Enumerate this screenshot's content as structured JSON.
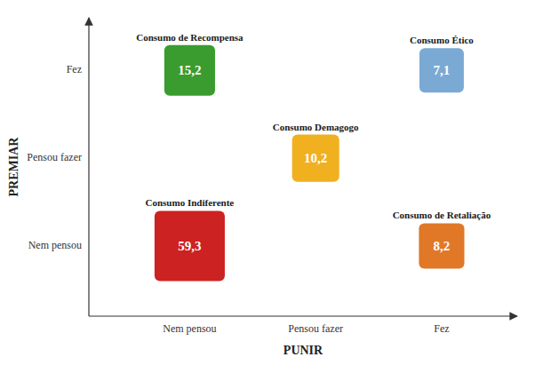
{
  "chart_data": {
    "type": "matrix",
    "x_label": "PUNIR",
    "y_label": "PREMIAR",
    "x_categories": [
      "Nem pensou",
      "Pensou fazer",
      "Fez"
    ],
    "y_categories": [
      "Nem pensou",
      "Pensou fazer",
      "Fez"
    ],
    "categories": [
      "Consumo de Recompensa",
      "Consumo Ético",
      "Consumo Demagogo",
      "Consumo Indiferente",
      "Consumo de Retaliação"
    ],
    "x": [
      "Nem pensou",
      "Fez",
      "Pensou fazer",
      "Nem pensou",
      "Fez"
    ],
    "y": [
      "Fez",
      "Fez",
      "Pensou fazer",
      "Nem pensou",
      "Nem pensou"
    ],
    "values": [
      15.2,
      7.1,
      10.2,
      59.3,
      8.2
    ],
    "value_labels": [
      "15,2",
      "7,1",
      "10,2",
      "59,3",
      "8,2"
    ],
    "colors": [
      "#3a9c2e",
      "#7aaad4",
      "#f0b020",
      "#cc2222",
      "#e07828"
    ],
    "data_labels": true
  }
}
